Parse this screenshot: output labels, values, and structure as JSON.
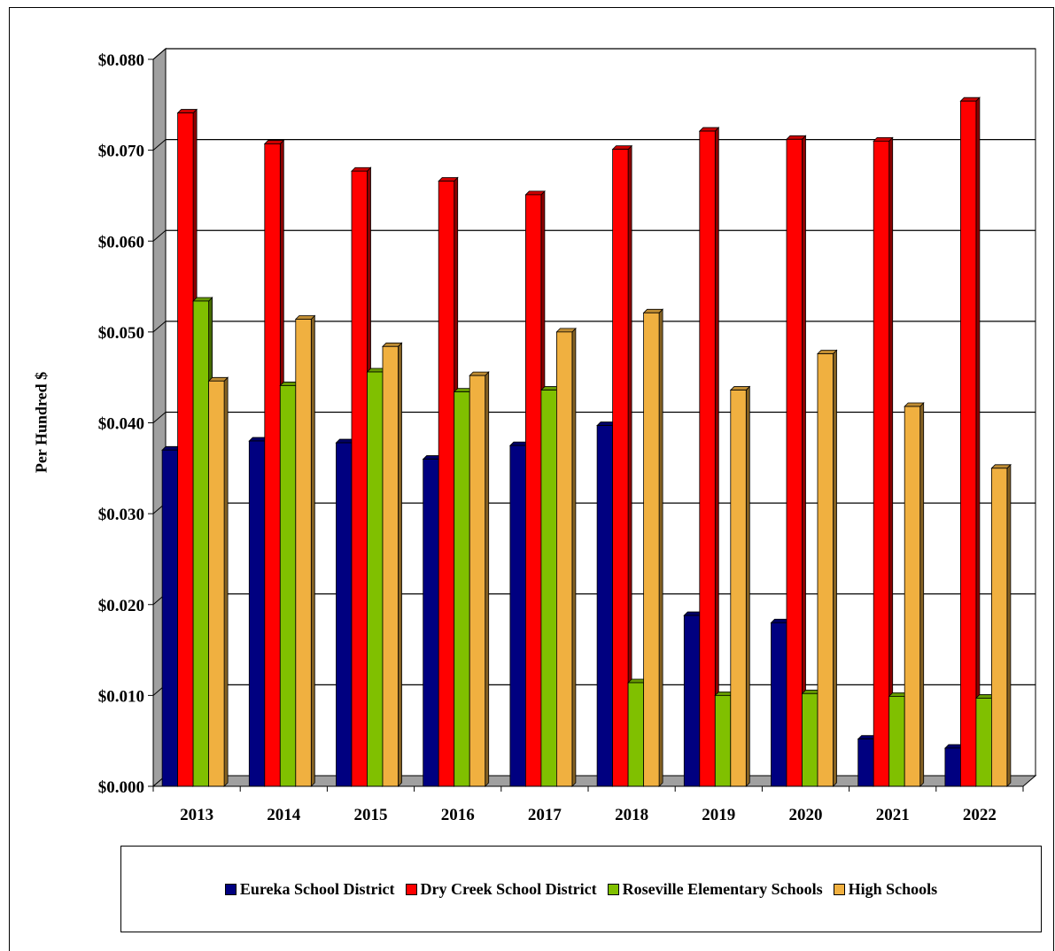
{
  "chart_data": {
    "type": "bar",
    "title": "",
    "xlabel": "",
    "ylabel": "Per Hundred $",
    "ylim": [
      0,
      0.08
    ],
    "yticks": [
      "$0.000",
      "$0.010",
      "$0.020",
      "$0.030",
      "$0.040",
      "$0.050",
      "$0.060",
      "$0.070",
      "$0.080"
    ],
    "categories": [
      "2013",
      "2014",
      "2015",
      "2016",
      "2017",
      "2018",
      "2019",
      "2020",
      "2021",
      "2022"
    ],
    "series": [
      {
        "name": "Eureka School District",
        "color": "#000080",
        "values": [
          0.037,
          0.038,
          0.0378,
          0.036,
          0.0375,
          0.0397,
          0.0188,
          0.018,
          0.0052,
          0.0042
        ]
      },
      {
        "name": "Dry Creek School District",
        "color": "#ff0000",
        "values": [
          0.0741,
          0.0707,
          0.0677,
          0.0666,
          0.0651,
          0.0701,
          0.0721,
          0.0712,
          0.071,
          0.0754
        ]
      },
      {
        "name": "Roseville Elementary Schools",
        "color": "#80c000",
        "values": [
          0.0534,
          0.0441,
          0.0456,
          0.0434,
          0.0436,
          0.0114,
          0.01,
          0.0102,
          0.0099,
          0.0097
        ]
      },
      {
        "name": "High Schools",
        "color": "#f0b040",
        "values": [
          0.0446,
          0.0514,
          0.0484,
          0.0452,
          0.05,
          0.0521,
          0.0436,
          0.0476,
          0.0418,
          0.035
        ]
      }
    ],
    "legend_position": "bottom",
    "grid": true
  }
}
